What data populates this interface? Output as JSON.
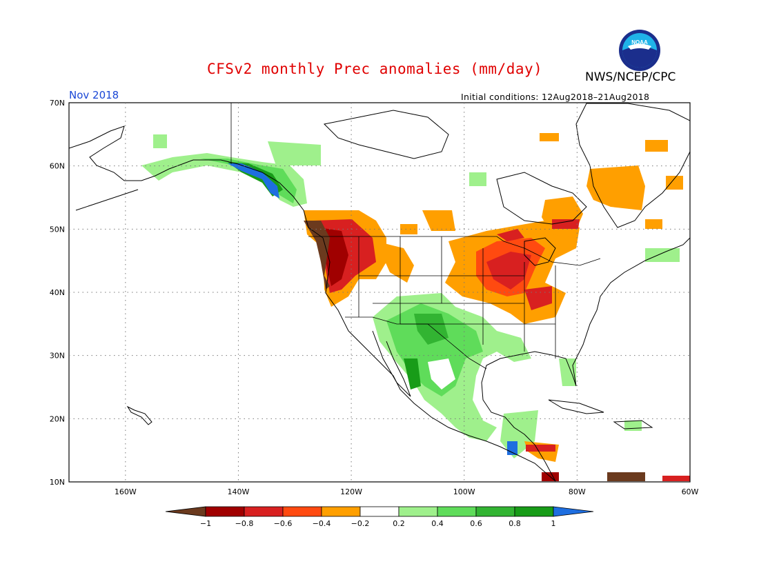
{
  "title": "CFSv2 monthly Prec anomalies (mm/day)",
  "agency": "NWS/NCEP/CPC",
  "logo_text": "NOAA",
  "month_label": "Nov 2018",
  "initial_conditions": "Initial conditions: 12Aug2018–21Aug2018",
  "map": {
    "lat_labels": [
      "70N",
      "60N",
      "50N",
      "40N",
      "30N",
      "20N",
      "10N"
    ],
    "lon_labels": [
      "160W",
      "140W",
      "120W",
      "100W",
      "80W",
      "60W"
    ],
    "lat_range": [
      10,
      70
    ],
    "lon_range": [
      -170,
      -60
    ],
    "grid": "dotted"
  },
  "colorbar": {
    "bins": [
      "#6b3a1e",
      "#a00000",
      "#d82020",
      "#ff4a10",
      "#ff9f00",
      "#ffffff",
      "#9ff08c",
      "#5fdc5a",
      "#32b432",
      "#189c18",
      "#1e6ee0"
    ],
    "tick_labels": [
      "−1",
      "−0.8",
      "−0.6",
      "−0.4",
      "−0.2",
      "0.2",
      "0.4",
      "0.6",
      "0.8",
      "1"
    ]
  },
  "colors": {
    "brown": "#6b3a1e",
    "dark_red": "#a00000",
    "red": "#d82020",
    "orange_red": "#ff4a10",
    "orange": "#ff9f00",
    "light_green": "#9ff08c",
    "green": "#5fdc5a",
    "mid_green": "#32b432",
    "dark_green": "#189c18",
    "blue": "#1e6ee0",
    "title": "#e00000",
    "month": "#1a47d6"
  }
}
